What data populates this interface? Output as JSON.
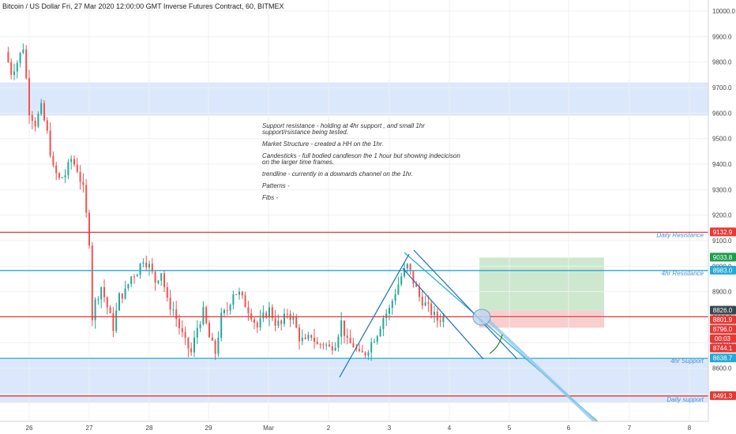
{
  "header": {
    "title": "Bitcoin / US Dollar Fri, 27 Mar 2020 12:00:00 GMT Inverse Futures Contract, 60, BITMEX"
  },
  "notes": [
    "Support resistance -  holding at 4hr support , and small 1hr support/rsistance being tested.",
    "Market Structure - created a HH on the 1hr.",
    "Candesticks - full bodied candleson the 1 hour but showing indecicison on the larger time frames.",
    "trendline - currently in a downards channel on the 1hr.",
    "Patterns -",
    "Fibs -"
  ],
  "chart_data": {
    "type": "candlestick",
    "y_axis": {
      "ticks": [
        "10000.0",
        "9900.0",
        "9800.0",
        "9700.0",
        "9600.0",
        "9500.0",
        "9400.0",
        "9300.0",
        "9200.0",
        "9100.0",
        "9000.0",
        "8900.0",
        "8800.0",
        "8700.0",
        "8600.0",
        "8500.0"
      ],
      "tick_values": [
        10000,
        9900,
        9800,
        9700,
        9600,
        9500,
        9400,
        9300,
        9200,
        9100,
        9000,
        8900,
        8800,
        8700,
        8600,
        8500
      ],
      "range": [
        8460,
        10030
      ]
    },
    "x_axis": {
      "ticks": [
        "26",
        "27",
        "28",
        "29",
        "Mar",
        "2",
        "3",
        "4",
        "5",
        "6",
        "7",
        "8"
      ],
      "range": [
        25.6,
        8.35
      ]
    },
    "levels": [
      {
        "label": "Daily Resistance",
        "value": 9132.9,
        "color": "#e53935"
      },
      {
        "label": "4hr Resistance",
        "value": 8983.0,
        "color": "#26a9d6"
      },
      {
        "label": "",
        "value": 8801.9,
        "color": "#e53935"
      },
      {
        "label": "4hr Support",
        "value": 8638.7,
        "color": "#26a9d6"
      },
      {
        "label": "Daily support",
        "value": 8491.3,
        "color": "#e53935"
      }
    ],
    "zones": [
      {
        "from": 9590,
        "to": 9720,
        "color": "#dbe8fb"
      },
      {
        "from": 8465,
        "to": 8638.7,
        "color": "#dbe8fb"
      }
    ],
    "position": {
      "target": 9033.8,
      "entry": 8826.0,
      "stop": 8796.0,
      "profit_color": "#c8e6c9",
      "loss_color": "#f8c9c9"
    },
    "price_tags": [
      {
        "text": "9132.9",
        "value": 9132.9,
        "color": "#e53935"
      },
      {
        "text": "9033.8",
        "value": 9033.8,
        "color": "#1b9e4b"
      },
      {
        "text": "8983.0",
        "value": 8983.0,
        "color": "#26a9d6"
      },
      {
        "text": "8826.0",
        "value": 8826.0,
        "color": "#37474f"
      },
      {
        "text": "8801.9",
        "value": 8801.9,
        "color": "#e53935"
      },
      {
        "text": "8796.0",
        "value": 8796.0,
        "color": "#e53935"
      },
      {
        "text": "00:03",
        "value": 8770.0,
        "color": "#e53935"
      },
      {
        "text": "8744.1",
        "value": 8744.1,
        "color": "#e53935"
      },
      {
        "text": "8638.7",
        "value": 8638.7,
        "color": "#26a9d6"
      },
      {
        "text": "8491.3",
        "value": 8491.3,
        "color": "#e53935"
      }
    ],
    "price_path": [
      [
        25.6,
        9840
      ],
      [
        25.7,
        9760
      ],
      [
        25.8,
        9800
      ],
      [
        25.9,
        9860
      ],
      [
        26.0,
        9610
      ],
      [
        26.1,
        9560
      ],
      [
        26.2,
        9620
      ],
      [
        26.3,
        9520
      ],
      [
        26.4,
        9380
      ],
      [
        26.5,
        9340
      ],
      [
        26.6,
        9360
      ],
      [
        26.7,
        9420
      ],
      [
        26.8,
        9380
      ],
      [
        26.9,
        9300
      ],
      [
        27.0,
        9100
      ],
      [
        27.05,
        8800
      ],
      [
        27.1,
        8860
      ],
      [
        27.2,
        8920
      ],
      [
        27.3,
        8840
      ],
      [
        27.4,
        8760
      ],
      [
        27.5,
        8880
      ],
      [
        27.6,
        8900
      ],
      [
        27.7,
        8960
      ],
      [
        27.8,
        8980
      ],
      [
        27.9,
        9030
      ],
      [
        28.0,
        9000
      ],
      [
        28.1,
        8940
      ],
      [
        28.2,
        8980
      ],
      [
        28.3,
        8860
      ],
      [
        28.4,
        8830
      ],
      [
        28.5,
        8760
      ],
      [
        28.6,
        8700
      ],
      [
        28.7,
        8660
      ],
      [
        28.8,
        8760
      ],
      [
        28.9,
        8820
      ],
      [
        29.0,
        8720
      ],
      [
        29.1,
        8660
      ],
      [
        29.2,
        8800
      ],
      [
        29.3,
        8830
      ],
      [
        29.4,
        8900
      ],
      [
        29.5,
        8890
      ],
      [
        29.6,
        8850
      ],
      [
        29.7,
        8810
      ],
      [
        29.8,
        8760
      ],
      [
        29.9,
        8800
      ],
      [
        30.0,
        8830
      ],
      [
        30.1,
        8780
      ],
      [
        30.2,
        8770
      ],
      [
        30.3,
        8820
      ],
      [
        30.4,
        8790
      ],
      [
        30.5,
        8720
      ],
      [
        30.6,
        8700
      ],
      [
        30.7,
        8730
      ],
      [
        30.8,
        8690
      ],
      [
        30.9,
        8700
      ],
      [
        31.0,
        8680
      ],
      [
        31.1,
        8700
      ],
      [
        31.2,
        8780
      ],
      [
        31.3,
        8700
      ],
      [
        31.4,
        8690
      ],
      [
        31.5,
        8650
      ],
      [
        31.6,
        8660
      ],
      [
        31.7,
        8700
      ],
      [
        31.8,
        8740
      ],
      [
        31.9,
        8800
      ],
      [
        32.0,
        8830
      ],
      [
        32.1,
        8900
      ],
      [
        32.2,
        8960
      ],
      [
        32.3,
        9000
      ],
      [
        32.4,
        8940
      ],
      [
        32.5,
        8880
      ],
      [
        32.6,
        8850
      ],
      [
        32.7,
        8820
      ],
      [
        32.8,
        8790
      ],
      [
        32.9,
        8800
      ]
    ]
  }
}
